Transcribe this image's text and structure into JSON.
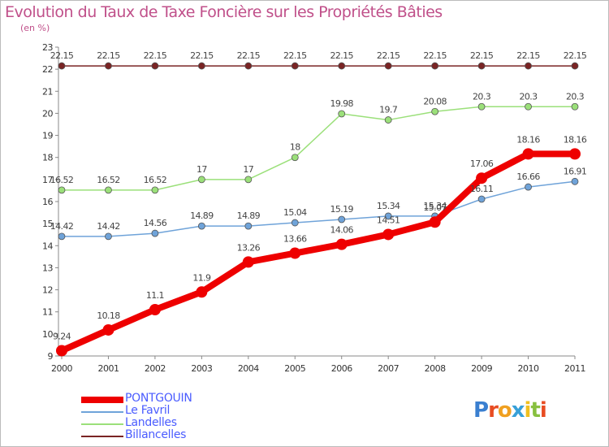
{
  "title": "Evolution du Taux de Taxe Foncière sur les Propriétés Bâties",
  "subtitle": "(en %)",
  "brand": {
    "text": "Proxiti",
    "letters": [
      {
        "ch": "P",
        "color": "#3a7fd0"
      },
      {
        "ch": "r",
        "color": "#e84c22"
      },
      {
        "ch": "o",
        "color": "#f0a020"
      },
      {
        "ch": "x",
        "color": "#38a0d8"
      },
      {
        "ch": "i",
        "color": "#f0c020"
      },
      {
        "ch": "t",
        "color": "#88c040"
      },
      {
        "ch": "i",
        "color": "#e84c22"
      }
    ]
  },
  "chart_data": {
    "type": "line",
    "title": "Evolution du Taux de Taxe Foncière sur les Propriétés Bâties",
    "ylabel": "(en %)",
    "xlabel": "",
    "x": [
      "2000",
      "2001",
      "2002",
      "2003",
      "2004",
      "2005",
      "2006",
      "2007",
      "2008",
      "2009",
      "2010",
      "2011"
    ],
    "ylim": [
      9,
      23
    ],
    "yticks": [
      9,
      10,
      11,
      12,
      13,
      14,
      15,
      16,
      17,
      18,
      19,
      20,
      21,
      22,
      23
    ],
    "grid": false,
    "legend_position": "bottom-left",
    "series": [
      {
        "name": "Billancelles",
        "color": "#7a2424",
        "width": 1.5,
        "marker": 4,
        "values": [
          22.15,
          22.15,
          22.15,
          22.15,
          22.15,
          22.15,
          22.15,
          22.15,
          22.15,
          22.15,
          22.15,
          22.15
        ],
        "labels": [
          "22.15",
          "22.15",
          "22.15",
          "22.15",
          "22.15",
          "22.15",
          "22.15",
          "22.15",
          "22.15",
          "22.15",
          "22.15",
          "22.15"
        ]
      },
      {
        "name": "Landelles",
        "color": "#9be07a",
        "width": 1.5,
        "marker": 4,
        "values": [
          16.52,
          16.52,
          16.52,
          17,
          17,
          18,
          19.98,
          19.7,
          20.08,
          20.3,
          20.3,
          20.3
        ],
        "labels": [
          "16.52",
          "16.52",
          "16.52",
          "17",
          "17",
          "18",
          "19.98",
          "19.7",
          "20.08",
          "20.3",
          "20.3",
          "20.3"
        ]
      },
      {
        "name": "Le Favril",
        "color": "#6fa3d9",
        "width": 1.5,
        "marker": 4,
        "values": [
          14.42,
          14.42,
          14.56,
          14.89,
          14.89,
          15.04,
          15.19,
          15.34,
          15.34,
          16.11,
          16.66,
          16.91
        ],
        "labels": [
          "14.42",
          "14.42",
          "14.56",
          "14.89",
          "14.89",
          "15.04",
          "15.19",
          "15.34",
          "15.34",
          "16.11",
          "16.66",
          "16.91"
        ]
      },
      {
        "name": "PONTGOUIN",
        "color": "#ee0000",
        "width": 8,
        "marker": 7,
        "values": [
          9.24,
          10.18,
          11.1,
          11.9,
          13.26,
          13.66,
          14.06,
          14.51,
          15.07,
          17.06,
          18.16,
          18.16
        ],
        "labels": [
          "9.24",
          "10.18",
          "11.1",
          "11.9",
          "13.26",
          "13.66",
          "14.06",
          "14.51",
          "15.07",
          "17.06",
          "18.16",
          "18.16"
        ]
      }
    ]
  },
  "legend": [
    {
      "name": "PONTGOUIN",
      "color": "#ee0000",
      "thickness": 8
    },
    {
      "name": "Le Favril",
      "color": "#6fa3d9",
      "thickness": 2
    },
    {
      "name": "Landelles",
      "color": "#9be07a",
      "thickness": 2
    },
    {
      "name": "Billancelles",
      "color": "#7a2424",
      "thickness": 2
    }
  ]
}
